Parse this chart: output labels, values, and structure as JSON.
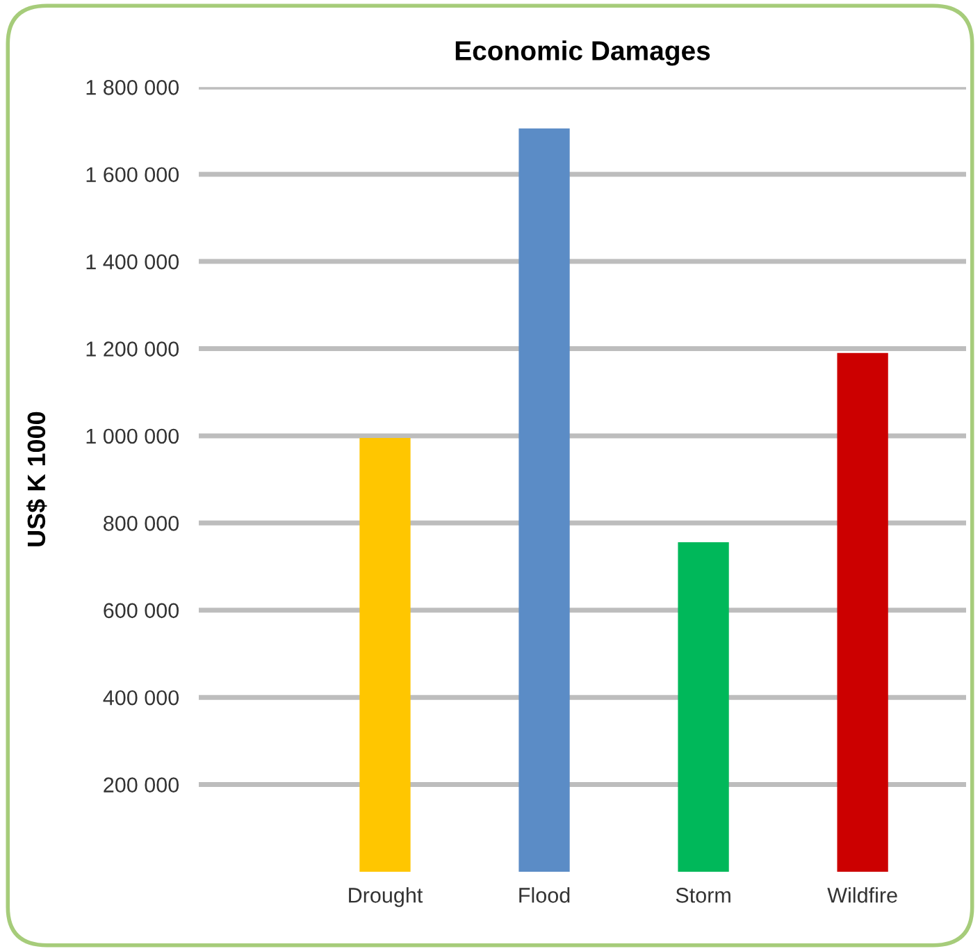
{
  "chart_data": {
    "type": "bar",
    "title": "Economic Damages",
    "ylabel": "US$ K 1000",
    "categories": [
      "Drought",
      "Flood",
      "Storm",
      "Wildfire"
    ],
    "values": [
      995000,
      1705000,
      756000,
      1190000
    ],
    "colors": [
      "#ffc600",
      "#5b8cc6",
      "#00b85a",
      "#cc0000"
    ],
    "ylim": [
      0,
      1800000
    ],
    "yticks": [
      {
        "value": 200000,
        "label": "200 000"
      },
      {
        "value": 400000,
        "label": "400 000"
      },
      {
        "value": 600000,
        "label": "600 000"
      },
      {
        "value": 800000,
        "label": "800 000"
      },
      {
        "value": 1000000,
        "label": "1 000 000"
      },
      {
        "value": 1200000,
        "label": "1 200 000"
      },
      {
        "value": 1400000,
        "label": "1 400 000"
      },
      {
        "value": 1600000,
        "label": "1 600 000"
      },
      {
        "value": 1800000,
        "label": "1 800 000"
      }
    ],
    "grid": "y",
    "legend": false
  }
}
